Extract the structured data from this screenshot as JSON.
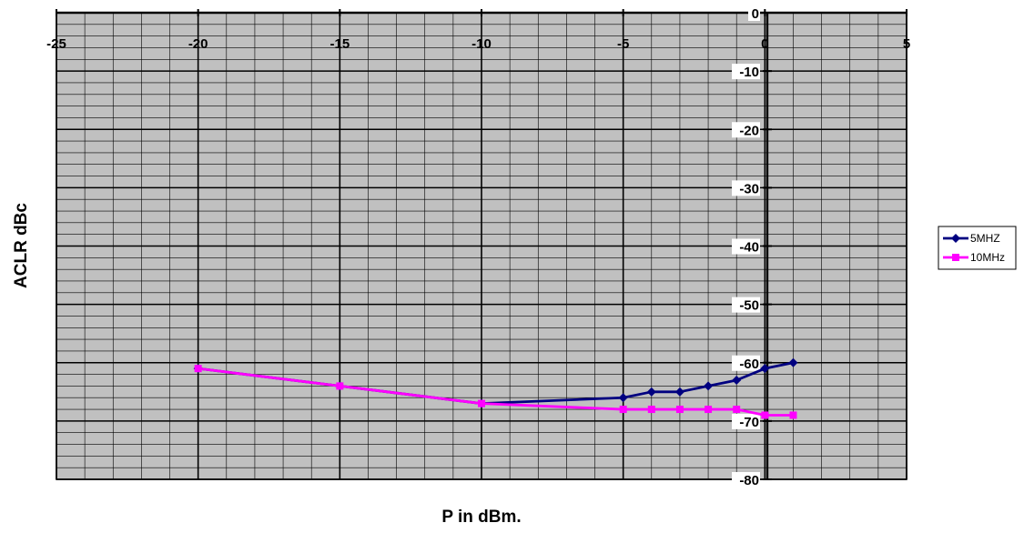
{
  "chart_data": {
    "type": "line",
    "title": "",
    "xlabel": "P in dBm.",
    "ylabel": "ACLR dBc",
    "xlim": [
      -25,
      5
    ],
    "ylim": [
      -80,
      0
    ],
    "x_ticks": [
      -25,
      -20,
      -15,
      -10,
      -5,
      0,
      5
    ],
    "y_ticks": [
      0,
      -10,
      -20,
      -30,
      -40,
      -50,
      -60,
      -70,
      -80
    ],
    "x_tick_labels": [
      "-25",
      "-20",
      "-15",
      "-10",
      "-5",
      "0",
      "5"
    ],
    "y_tick_labels": [
      "0",
      "-10",
      "-20",
      "-30",
      "-40",
      "-50",
      "-60",
      "-70",
      "-80"
    ],
    "grid": true,
    "legend_position": "right",
    "series": [
      {
        "name": "5MHZ",
        "color": "#000080",
        "marker": "diamond",
        "x": [
          -20,
          -15,
          -10,
          -5,
          -4,
          -3,
          -2,
          -1,
          0,
          1
        ],
        "y": [
          -61,
          -64,
          -67,
          -66,
          -65,
          -65,
          -64,
          -63,
          -61,
          -60
        ]
      },
      {
        "name": "10MHz",
        "color": "#ff00ff",
        "marker": "square",
        "x": [
          -20,
          -15,
          -10,
          -5,
          -4,
          -3,
          -2,
          -1,
          0,
          1
        ],
        "y": [
          -61,
          -64,
          -67,
          -68,
          -68,
          -68,
          -68,
          -68,
          -69,
          -69
        ]
      }
    ]
  }
}
